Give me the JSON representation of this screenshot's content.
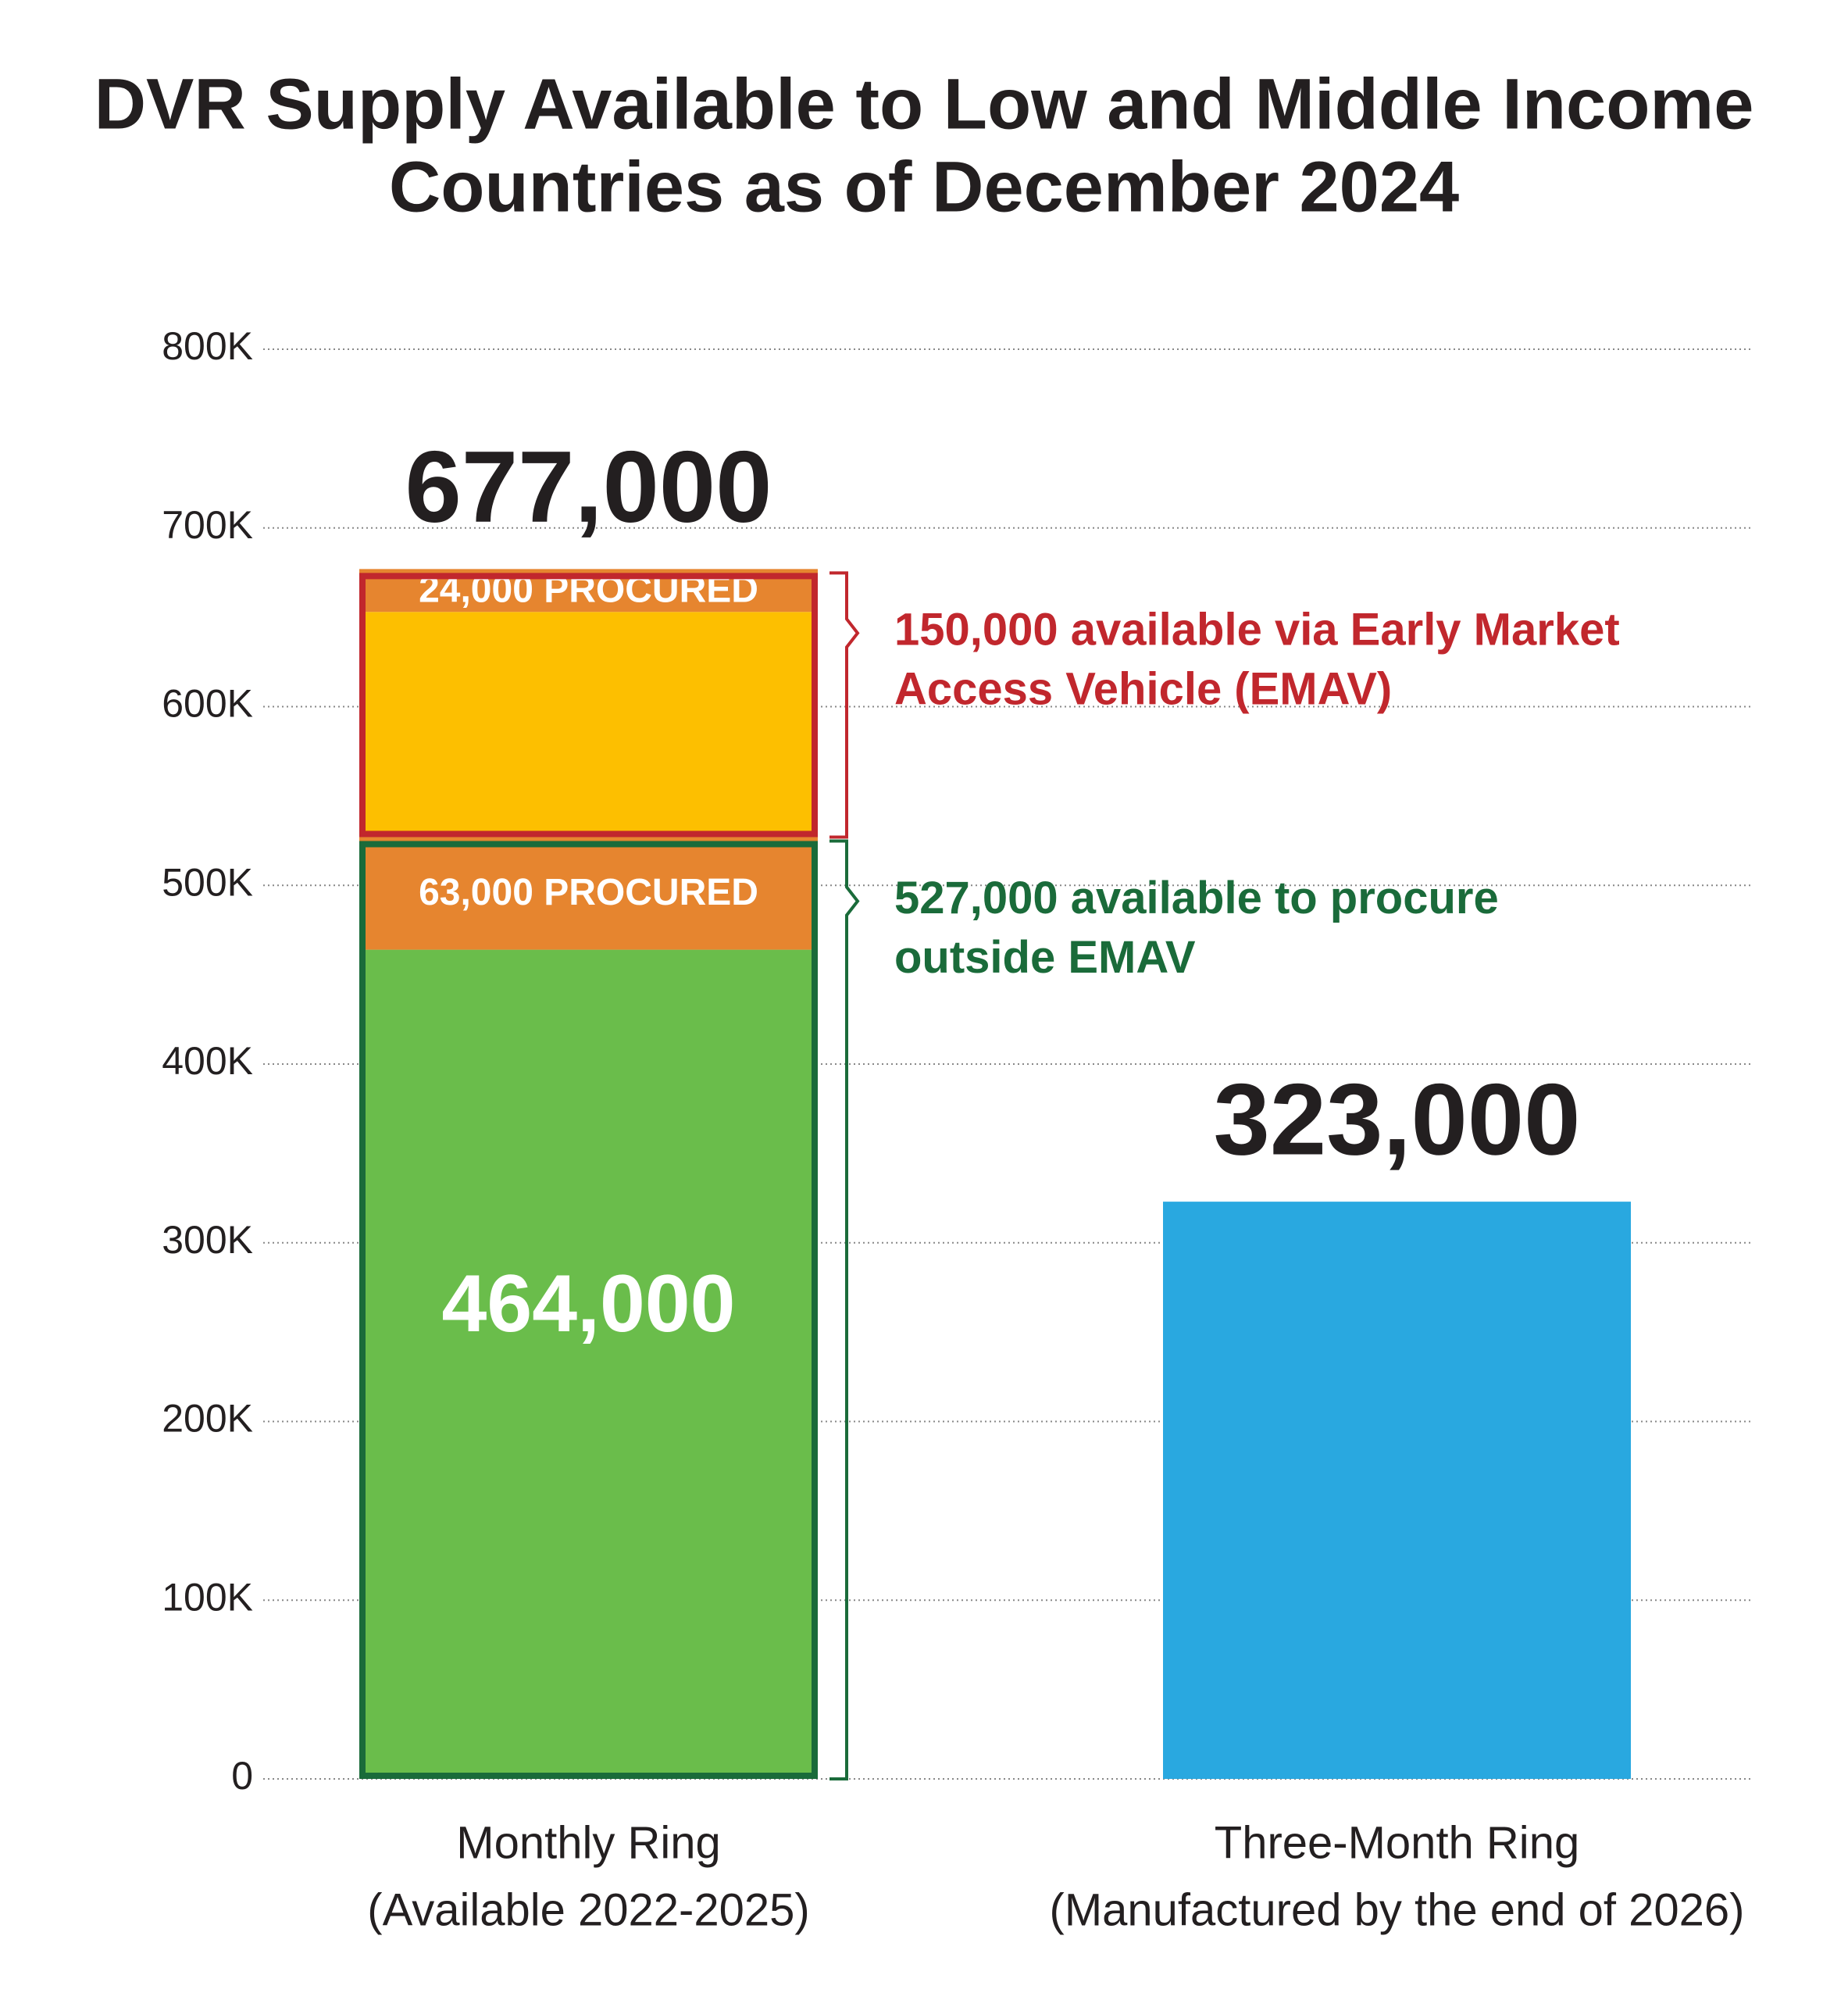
{
  "chart_data": {
    "type": "stacked-bar",
    "title": [
      "DVR Supply Available to Low and Middle Income",
      "Countries as of December 2024"
    ],
    "categories": [
      [
        "Monthly Ring",
        "(Available 2022-2025)"
      ],
      [
        "Three-Month Ring",
        "(Manufactured by the end of 2026)"
      ]
    ],
    "series": [
      {
        "color": "#6abd4b",
        "values": [
          464000,
          null
        ],
        "value_labels": [
          "464,000",
          null
        ]
      },
      {
        "color": "#e6852f",
        "values": [
          63000,
          null
        ],
        "value_labels": [
          "63,000 PROCURED",
          null
        ]
      },
      {
        "color": "#fdbf00",
        "values": [
          126000,
          null
        ]
      },
      {
        "color": "#e6852f",
        "values": [
          24000,
          null
        ],
        "value_labels": [
          "24,000 PROCURED",
          null
        ]
      },
      {
        "color": "#29a8e0",
        "values": [
          null,
          323000
        ]
      }
    ],
    "totals": [
      677000,
      323000
    ],
    "total_labels": [
      "677,000",
      "323,000"
    ],
    "brackets": [
      {
        "lines": [
          "150,000 available via Early Market",
          "Access Vehicle (EMAV)"
        ],
        "range": [
          527000,
          677000
        ],
        "color": "#c1272d"
      },
      {
        "lines": [
          "527,000 available to procure",
          "outside EMAV"
        ],
        "range": [
          0,
          527000
        ],
        "color": "#1a6b3a"
      }
    ],
    "ylim": [
      0,
      800000
    ],
    "yticks": [
      0,
      {
        "value": 100000,
        "label": "100K"
      },
      {
        "value": 200000,
        "label": "200K"
      },
      {
        "value": 300000,
        "label": "300K"
      },
      {
        "value": 400000,
        "label": "400K"
      },
      {
        "value": 500000,
        "label": "500K"
      },
      {
        "value": 600000,
        "label": "600K"
      },
      {
        "value": 700000,
        "label": "700K"
      },
      {
        "value": 800000,
        "label": "800K"
      }
    ],
    "grid": true
  }
}
